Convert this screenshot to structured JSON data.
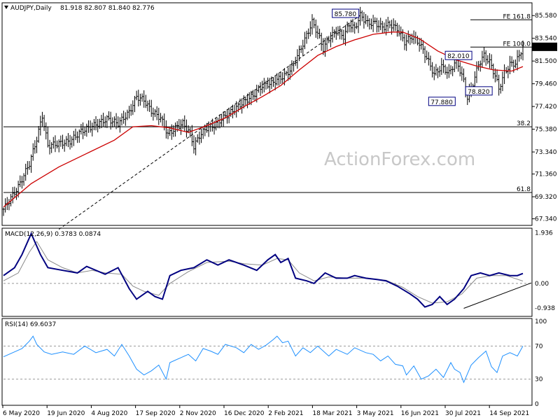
{
  "header": {
    "symbol": "AUDJPY,Daily",
    "ohlc": "81.918 82.807 81.840 82.776"
  },
  "watermark": "ActionForex.com",
  "colors": {
    "candles": "#000000",
    "ma": "#cc0000",
    "macd": "#000080",
    "signal": "#8a8a8a",
    "rsi": "#1e90ff",
    "level": "#000000",
    "label_border": "#000080"
  },
  "chart_data": [
    {
      "type": "candlestick",
      "title": "AUDJPY,Daily",
      "y_ticks": [
        "85.580",
        "83.540",
        "81.500",
        "79.460",
        "77.420",
        "75.380",
        "73.340",
        "71.360",
        "69.320",
        "67.340"
      ],
      "ylim": [
        67.0,
        86.6
      ],
      "x_ticks": [
        "6 May 2020",
        "19 Jun 2020",
        "4 Aug 2020",
        "17 Sep 2020",
        "2 Nov 2020",
        "16 Dec 2020",
        "2 Feb 2021",
        "18 Mar 2021",
        "3 May 2021",
        "16 Jun 2021",
        "30 Jul 2021",
        "14 Sep 2021"
      ],
      "close_path": [
        [
          0,
          68.2
        ],
        [
          8,
          70.2
        ],
        [
          14,
          72.3
        ],
        [
          18,
          74.5
        ],
        [
          21,
          76.6
        ],
        [
          24,
          73.9
        ],
        [
          30,
          74.1
        ],
        [
          36,
          74.3
        ],
        [
          42,
          75.2
        ],
        [
          50,
          75.8
        ],
        [
          56,
          76.3
        ],
        [
          62,
          75.9
        ],
        [
          68,
          76.9
        ],
        [
          72,
          78.3
        ],
        [
          76,
          78.0
        ],
        [
          80,
          77.0
        ],
        [
          85,
          76.4
        ],
        [
          89,
          74.9
        ],
        [
          93,
          75.5
        ],
        [
          97,
          75.9
        ],
        [
          101,
          75.0
        ],
        [
          103,
          73.8
        ],
        [
          106,
          74.8
        ],
        [
          110,
          75.5
        ],
        [
          114,
          75.7
        ],
        [
          118,
          76.3
        ],
        [
          123,
          76.9
        ],
        [
          129,
          77.7
        ],
        [
          135,
          78.4
        ],
        [
          140,
          79.3
        ],
        [
          145,
          79.5
        ],
        [
          148,
          79.8
        ],
        [
          153,
          80.3
        ],
        [
          156,
          80.9
        ],
        [
          160,
          82.3
        ],
        [
          164,
          83.8
        ],
        [
          167,
          85.0
        ],
        [
          170,
          84.0
        ],
        [
          173,
          82.6
        ],
        [
          176,
          83.5
        ],
        [
          180,
          84.2
        ],
        [
          184,
          83.7
        ],
        [
          187,
          84.8
        ],
        [
          190,
          84.4
        ],
        [
          193,
          85.6
        ],
        [
          197,
          84.9
        ],
        [
          201,
          84.9
        ],
        [
          205,
          84.5
        ],
        [
          209,
          84.8
        ],
        [
          213,
          84.4
        ],
        [
          217,
          83.2
        ],
        [
          221,
          83.7
        ],
        [
          225,
          83.1
        ],
        [
          229,
          81.8
        ],
        [
          233,
          80.3
        ],
        [
          237,
          81.0
        ],
        [
          241,
          80.4
        ],
        [
          245,
          81.6
        ],
        [
          249,
          79.7
        ],
        [
          251,
          78.2
        ],
        [
          254,
          79.5
        ],
        [
          257,
          81.2
        ],
        [
          260,
          82.0
        ],
        [
          263,
          81.4
        ],
        [
          266,
          80.2
        ],
        [
          268,
          79.0
        ],
        [
          271,
          80.4
        ],
        [
          274,
          81.2
        ],
        [
          277,
          81.3
        ],
        [
          279,
          82.0
        ],
        [
          281,
          82.8
        ]
      ],
      "moving_average": [
        [
          0,
          68.4
        ],
        [
          15,
          70.5
        ],
        [
          30,
          72.0
        ],
        [
          45,
          73.2
        ],
        [
          60,
          74.4
        ],
        [
          70,
          75.6
        ],
        [
          80,
          75.7
        ],
        [
          90,
          75.5
        ],
        [
          100,
          75.1
        ],
        [
          110,
          75.7
        ],
        [
          120,
          76.4
        ],
        [
          130,
          77.4
        ],
        [
          140,
          78.3
        ],
        [
          150,
          79.3
        ],
        [
          160,
          80.7
        ],
        [
          170,
          82.0
        ],
        [
          180,
          82.8
        ],
        [
          190,
          83.4
        ],
        [
          200,
          83.9
        ],
        [
          210,
          84.1
        ],
        [
          216,
          84.1
        ],
        [
          225,
          83.5
        ],
        [
          235,
          82.4
        ],
        [
          245,
          81.6
        ],
        [
          255,
          81.1
        ],
        [
          265,
          80.7
        ],
        [
          275,
          80.6
        ],
        [
          281,
          81.0
        ]
      ],
      "annotations": [
        {
          "label": "85.780",
          "value": 85.78
        },
        {
          "label": "82.010",
          "value": 82.01
        },
        {
          "label": "78.820",
          "value": 78.82
        },
        {
          "label": "77.880",
          "value": 77.88
        },
        {
          "label": "82.776",
          "value": 82.776
        }
      ],
      "levels": [
        {
          "label": "FE 161.8",
          "value": 85.2
        },
        {
          "label": "FE 100.0",
          "value": 82.75
        },
        {
          "label": "38.2",
          "value": 75.6
        },
        {
          "label": "61.8",
          "value": 69.7
        }
      ],
      "trendline": {
        "style": "dashed",
        "from": [
          30,
          66.4
        ],
        "to": [
          193,
          85.6
        ]
      }
    },
    {
      "type": "line",
      "title": "MACD(12,26,9) 0.3783 0.0874",
      "y_ticks": [
        "1.936",
        "0.00",
        "-0.938"
      ],
      "ylim": [
        -1.15,
        2.0
      ],
      "series": [
        {
          "name": "MACD",
          "values": [
            [
              0,
              0.3
            ],
            [
              6,
              0.6
            ],
            [
              10,
              1.1
            ],
            [
              15,
              1.9
            ],
            [
              20,
              1.1
            ],
            [
              24,
              0.6
            ],
            [
              32,
              0.5
            ],
            [
              40,
              0.4
            ],
            [
              45,
              0.65
            ],
            [
              55,
              0.35
            ],
            [
              62,
              0.6
            ],
            [
              68,
              -0.2
            ],
            [
              72,
              -0.6
            ],
            [
              78,
              -0.3
            ],
            [
              82,
              -0.5
            ],
            [
              86,
              -0.6
            ],
            [
              90,
              0.3
            ],
            [
              96,
              0.5
            ],
            [
              103,
              0.6
            ],
            [
              110,
              0.9
            ],
            [
              116,
              0.7
            ],
            [
              122,
              0.9
            ],
            [
              130,
              0.7
            ],
            [
              137,
              0.5
            ],
            [
              143,
              0.9
            ],
            [
              147,
              1.1
            ],
            [
              150,
              0.8
            ],
            [
              154,
              0.95
            ],
            [
              158,
              0.2
            ],
            [
              164,
              0.1
            ],
            [
              168,
              0.0
            ],
            [
              174,
              0.4
            ],
            [
              180,
              0.2
            ],
            [
              186,
              0.2
            ],
            [
              190,
              0.3
            ],
            [
              196,
              0.2
            ],
            [
              202,
              0.15
            ],
            [
              207,
              0.1
            ],
            [
              213,
              -0.1
            ],
            [
              220,
              -0.4
            ],
            [
              224,
              -0.6
            ],
            [
              228,
              -0.9
            ],
            [
              232,
              -0.8
            ],
            [
              236,
              -0.5
            ],
            [
              240,
              -0.8
            ],
            [
              244,
              -0.6
            ],
            [
              249,
              -0.2
            ],
            [
              253,
              0.3
            ],
            [
              258,
              0.4
            ],
            [
              263,
              0.3
            ],
            [
              268,
              0.4
            ],
            [
              274,
              0.3
            ],
            [
              278,
              0.3
            ],
            [
              281,
              0.38
            ]
          ]
        },
        {
          "name": "Signal",
          "values": [
            [
              0,
              0.1
            ],
            [
              8,
              0.4
            ],
            [
              14,
              1.2
            ],
            [
              18,
              1.6
            ],
            [
              24,
              0.9
            ],
            [
              32,
              0.6
            ],
            [
              40,
              0.4
            ],
            [
              48,
              0.5
            ],
            [
              55,
              0.4
            ],
            [
              64,
              0.35
            ],
            [
              70,
              -0.1
            ],
            [
              76,
              -0.3
            ],
            [
              84,
              -0.45
            ],
            [
              90,
              0.0
            ],
            [
              100,
              0.45
            ],
            [
              110,
              0.8
            ],
            [
              122,
              0.85
            ],
            [
              130,
              0.75
            ],
            [
              140,
              0.7
            ],
            [
              148,
              0.95
            ],
            [
              154,
              0.9
            ],
            [
              160,
              0.4
            ],
            [
              168,
              0.1
            ],
            [
              176,
              0.25
            ],
            [
              186,
              0.2
            ],
            [
              196,
              0.2
            ],
            [
              207,
              0.12
            ],
            [
              216,
              -0.15
            ],
            [
              224,
              -0.5
            ],
            [
              232,
              -0.75
            ],
            [
              240,
              -0.7
            ],
            [
              248,
              -0.4
            ],
            [
              256,
              0.2
            ],
            [
              264,
              0.3
            ],
            [
              272,
              0.3
            ],
            [
              281,
              0.09
            ]
          ]
        }
      ],
      "trendline": {
        "from": [
          249,
          -0.95
        ],
        "to": [
          281,
          0.02
        ]
      }
    },
    {
      "type": "line",
      "title": "RSI(14) 69.6037",
      "y_ticks": [
        "100",
        "70",
        "30",
        "0"
      ],
      "levels": [
        70,
        30
      ],
      "ylim": [
        0,
        100
      ],
      "series": [
        {
          "name": "RSI",
          "values": [
            [
              0,
              57
            ],
            [
              5,
              62
            ],
            [
              10,
              67
            ],
            [
              14,
              76
            ],
            [
              16,
              82
            ],
            [
              18,
              72
            ],
            [
              22,
              63
            ],
            [
              26,
              60
            ],
            [
              32,
              63
            ],
            [
              38,
              60
            ],
            [
              44,
              70
            ],
            [
              50,
              62
            ],
            [
              56,
              66
            ],
            [
              60,
              58
            ],
            [
              64,
              72
            ],
            [
              68,
              58
            ],
            [
              72,
              42
            ],
            [
              76,
              35
            ],
            [
              80,
              40
            ],
            [
              84,
              47
            ],
            [
              88,
              30
            ],
            [
              90,
              50
            ],
            [
              96,
              56
            ],
            [
              100,
              60
            ],
            [
              104,
              52
            ],
            [
              108,
              67
            ],
            [
              112,
              64
            ],
            [
              116,
              60
            ],
            [
              120,
              72
            ],
            [
              126,
              68
            ],
            [
              130,
              62
            ],
            [
              134,
              72
            ],
            [
              138,
              66
            ],
            [
              142,
              71
            ],
            [
              146,
              78
            ],
            [
              148,
              82
            ],
            [
              151,
              74
            ],
            [
              154,
              76
            ],
            [
              158,
              58
            ],
            [
              162,
              68
            ],
            [
              166,
              62
            ],
            [
              170,
              70
            ],
            [
              176,
              58
            ],
            [
              180,
              66
            ],
            [
              186,
              60
            ],
            [
              190,
              68
            ],
            [
              196,
              62
            ],
            [
              200,
              60
            ],
            [
              204,
              52
            ],
            [
              208,
              58
            ],
            [
              212,
              48
            ],
            [
              216,
              46
            ],
            [
              218,
              35
            ],
            [
              222,
              46
            ],
            [
              226,
              30
            ],
            [
              230,
              34
            ],
            [
              234,
              42
            ],
            [
              238,
              32
            ],
            [
              242,
              50
            ],
            [
              244,
              42
            ],
            [
              247,
              38
            ],
            [
              249,
              26
            ],
            [
              253,
              47
            ],
            [
              257,
              56
            ],
            [
              261,
              64
            ],
            [
              264,
              45
            ],
            [
              267,
              38
            ],
            [
              270,
              58
            ],
            [
              274,
              62
            ],
            [
              278,
              58
            ],
            [
              281,
              70
            ]
          ]
        }
      ]
    }
  ]
}
